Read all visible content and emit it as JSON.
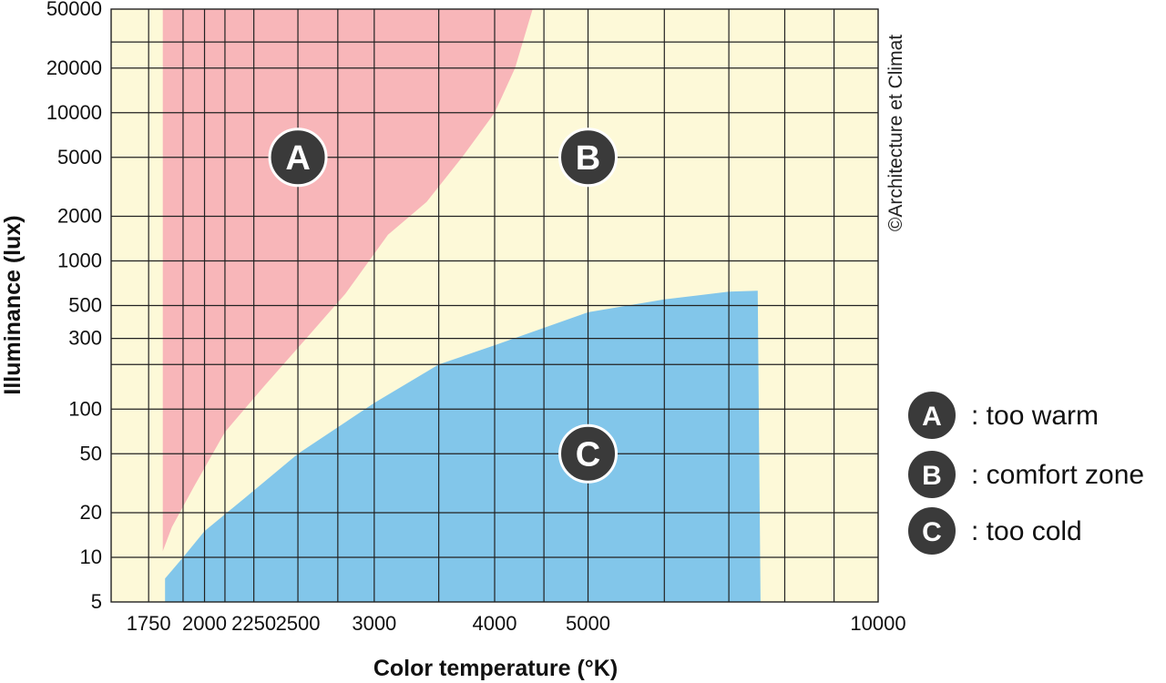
{
  "chart_data": {
    "type": "area",
    "title": "",
    "xlabel": "Color temperature (°K)",
    "ylabel": "Illuminance (lux)",
    "x_scale": "log",
    "y_scale": "log",
    "xlim": [
      1600,
      10000
    ],
    "ylim": [
      5,
      50000
    ],
    "x_ticks": [
      1750,
      2000,
      2250,
      2500,
      3000,
      4000,
      5000,
      10000
    ],
    "y_ticks": [
      5,
      10,
      20,
      50,
      100,
      300,
      500,
      1000,
      2000,
      5000,
      10000,
      20000,
      50000
    ],
    "grid": true,
    "zones": [
      {
        "id": "A",
        "label": "too warm",
        "color": "#f8b6b9",
        "boundary": [
          [
            1810,
            11
          ],
          [
            1810,
            50000
          ],
          [
            4380,
            50000
          ],
          [
            4200,
            20000
          ],
          [
            4000,
            10000
          ],
          [
            3700,
            5000
          ],
          [
            3400,
            2500
          ],
          [
            3100,
            1500
          ],
          [
            2800,
            600
          ],
          [
            2550,
            300
          ],
          [
            2300,
            140
          ],
          [
            2100,
            70
          ],
          [
            1950,
            30
          ],
          [
            1850,
            16
          ],
          [
            1810,
            11
          ]
        ]
      },
      {
        "id": "C",
        "label": "too cold",
        "color": "#82c6ea",
        "boundary": [
          [
            1820,
            5
          ],
          [
            1820,
            7.2
          ],
          [
            1900,
            10
          ],
          [
            2000,
            15
          ],
          [
            2200,
            25
          ],
          [
            2500,
            50
          ],
          [
            3000,
            110
          ],
          [
            3500,
            200
          ],
          [
            4000,
            270
          ],
          [
            5000,
            450
          ],
          [
            6000,
            550
          ],
          [
            7000,
            620
          ],
          [
            7500,
            630
          ],
          [
            7550,
            5
          ],
          [
            1820,
            5
          ]
        ]
      },
      {
        "id": "B",
        "label": "comfort zone",
        "color": "#fdf9d8"
      }
    ],
    "markers": [
      {
        "letter": "A",
        "x": 2500,
        "y": 5000
      },
      {
        "letter": "B",
        "x": 5000,
        "y": 5000
      },
      {
        "letter": "C",
        "x": 5000,
        "y": 50
      }
    ],
    "legend": [
      {
        "letter": "A",
        "text": ": too warm"
      },
      {
        "letter": "B",
        "text": ": comfort zone"
      },
      {
        "letter": "C",
        "text": ": too cold"
      }
    ],
    "legend_position": "right",
    "credit": "©Architecture et Climat"
  }
}
